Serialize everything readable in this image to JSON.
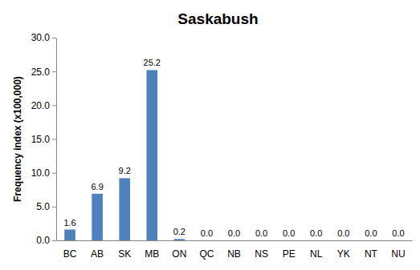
{
  "chart_data": {
    "type": "bar",
    "title": "Saskabush",
    "y_label": "Frequency index (x100,000)",
    "categories": [
      "BC",
      "AB",
      "SK",
      "MB",
      "ON",
      "QC",
      "NB",
      "NS",
      "PE",
      "NL",
      "YK",
      "NT",
      "NU"
    ],
    "values": [
      1.6,
      6.9,
      9.2,
      25.2,
      0.2,
      0,
      0,
      0,
      0,
      0,
      0,
      0,
      0
    ],
    "value_labels": [
      "1.6",
      "6.9",
      "9.2",
      "25.2",
      "0.2",
      "0.0",
      "0.0",
      "0.0",
      "0.0",
      "0.0",
      "0.0",
      "0.0",
      "0.0"
    ],
    "data_labels": true,
    "color": "#4f81bd",
    "ylim": [
      0,
      30
    ],
    "yticks": [
      {
        "value": 0,
        "label": "0.0"
      },
      {
        "value": 5,
        "label": "5.0"
      },
      {
        "value": 10,
        "label": "10.0"
      },
      {
        "value": 15,
        "label": "15.0"
      },
      {
        "value": 20,
        "label": "20.0"
      },
      {
        "value": 25,
        "label": "25.0"
      },
      {
        "value": 30,
        "label": "30.0"
      }
    ],
    "grid": false
  }
}
